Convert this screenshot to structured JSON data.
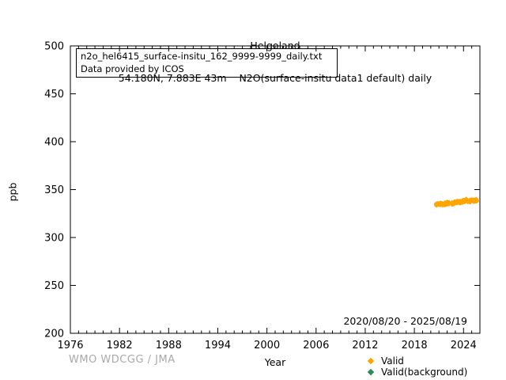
{
  "header": {
    "station": "Helgoland",
    "subtitle": "54.180N, 7.883E 43m    N2O(surface-insitu data1 default) daily"
  },
  "annotation": {
    "line1": "n2o_hel6415_surface-insitu_162_9999-9999_daily.txt",
    "line2": "Data provided by ICOS"
  },
  "date_range": "2020/08/20 - 2025/08/19",
  "footer": {
    "watermark": "WMO WDCGG / JMA",
    "xlabel": "Year",
    "ylabel": "ppb"
  },
  "colors": {
    "valid": "#FFA500",
    "valid_background": "#2E8B57",
    "watermark_gray": "#A9A9A9",
    "axis": "#000000"
  },
  "legend": {
    "items": [
      {
        "label": "Valid",
        "marker": "diamond-icon",
        "color": "#FFA500"
      },
      {
        "label": "Valid(background)",
        "marker": "diamond-icon",
        "color": "#2E8B57"
      }
    ]
  },
  "chart_data": {
    "type": "scatter",
    "title": "Helgoland",
    "subtitle": "N2O(surface-insitu data1 default) daily",
    "xlabel": "Year",
    "ylabel": "ppb",
    "x_range": [
      1976,
      2026
    ],
    "y_range": [
      200,
      500
    ],
    "x_ticks": [
      1976,
      1982,
      1988,
      1994,
      2000,
      2006,
      2012,
      2018,
      2024
    ],
    "x_minor_step": 1,
    "y_ticks": [
      200,
      250,
      300,
      350,
      400,
      450,
      500
    ],
    "grid": false,
    "legend_position": "below-right",
    "data_coverage": "2020/08/20 - 2025/08/19",
    "data_gap_years": [
      2022.25,
      2022.55
    ],
    "jitter_x": 0.055,
    "jitter_y": 1.8,
    "points_per_value": 9,
    "marker_half_size": 2.6,
    "series": [
      {
        "name": "Valid",
        "color": "#FFA500",
        "marker": "diamond",
        "points": [
          [
            2020.64,
            334.7
          ],
          [
            2020.72,
            334.5
          ],
          [
            2020.8,
            334.8
          ],
          [
            2020.89,
            335.0
          ],
          [
            2020.97,
            335.2
          ],
          [
            2021.05,
            335.4
          ],
          [
            2021.14,
            335.3
          ],
          [
            2021.22,
            335.0
          ],
          [
            2021.3,
            334.8
          ],
          [
            2021.39,
            334.6
          ],
          [
            2021.47,
            334.5
          ],
          [
            2021.55,
            334.6
          ],
          [
            2021.64,
            334.8
          ],
          [
            2021.72,
            335.1
          ],
          [
            2021.8,
            335.4
          ],
          [
            2021.89,
            335.6
          ],
          [
            2021.97,
            335.8
          ],
          [
            2022.05,
            336.0
          ],
          [
            2022.14,
            335.8
          ],
          [
            2022.22,
            335.6
          ],
          [
            2022.58,
            335.8
          ],
          [
            2022.66,
            335.9
          ],
          [
            2022.75,
            336.1
          ],
          [
            2022.83,
            336.3
          ],
          [
            2022.91,
            336.5
          ],
          [
            2023.0,
            336.7
          ],
          [
            2023.08,
            336.9
          ],
          [
            2023.16,
            337.0
          ],
          [
            2023.25,
            337.2
          ],
          [
            2023.33,
            337.3
          ],
          [
            2023.41,
            337.2
          ],
          [
            2023.5,
            336.9
          ],
          [
            2023.58,
            336.8
          ],
          [
            2023.66,
            337.0
          ],
          [
            2023.75,
            337.2
          ],
          [
            2023.83,
            337.5
          ],
          [
            2023.91,
            337.7
          ],
          [
            2024.0,
            337.9
          ],
          [
            2024.08,
            338.1
          ],
          [
            2024.16,
            338.4
          ],
          [
            2024.25,
            339.0
          ],
          [
            2024.33,
            339.4
          ],
          [
            2024.41,
            338.6
          ],
          [
            2024.5,
            338.0
          ],
          [
            2024.58,
            337.8
          ],
          [
            2024.66,
            337.9
          ],
          [
            2024.75,
            338.1
          ],
          [
            2024.83,
            338.3
          ],
          [
            2024.91,
            338.5
          ],
          [
            2025.0,
            338.6
          ],
          [
            2025.08,
            338.8
          ],
          [
            2025.16,
            339.0
          ],
          [
            2025.25,
            338.8
          ],
          [
            2025.33,
            338.6
          ],
          [
            2025.41,
            338.5
          ],
          [
            2025.5,
            338.8
          ],
          [
            2025.58,
            339.0
          ],
          [
            2025.63,
            339.1
          ]
        ]
      },
      {
        "name": "Valid(background)",
        "color": "#2E8B57",
        "marker": "diamond",
        "points": []
      }
    ]
  }
}
